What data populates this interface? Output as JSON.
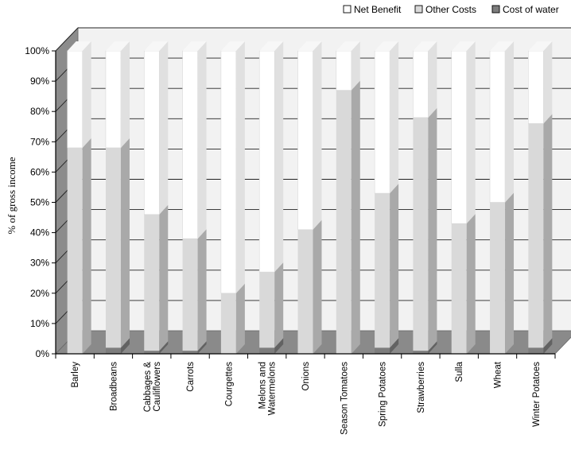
{
  "chart_data": {
    "type": "bar",
    "stacked": true,
    "three_d": true,
    "xlabel": "",
    "ylabel": "% of gross income",
    "ylim": [
      0,
      100
    ],
    "yticks": [
      "0%",
      "10%",
      "20%",
      "30%",
      "40%",
      "50%",
      "60%",
      "70%",
      "80%",
      "90%",
      "100%"
    ],
    "grid": true,
    "legend_position": "top-right",
    "categories": [
      "Barley",
      "Broadbeans",
      "Cabbages & Cauliflowers",
      "Carrots",
      "Courgettes",
      "Melons and Watermelons",
      "Onions",
      "Season Tomatoes",
      "Spring Potatoes",
      "Strawberries",
      "Sulla",
      "Wheat",
      "Winter Potatoes"
    ],
    "series": [
      {
        "name": "Cost of water",
        "color": "#7d7d7d",
        "values": [
          0,
          2,
          1,
          1,
          0,
          2,
          0,
          0,
          2,
          1,
          0,
          0,
          2
        ]
      },
      {
        "name": "Other Costs",
        "color": "#d9d9d9",
        "values": [
          68,
          66,
          45,
          37,
          20,
          25,
          41,
          87,
          51,
          77,
          43,
          50,
          74
        ]
      },
      {
        "name": "Net Benefit",
        "color": "#ffffff",
        "values": [
          32,
          32,
          54,
          62,
          80,
          73,
          59,
          13,
          47,
          22,
          57,
          50,
          24
        ]
      }
    ],
    "legend": [
      "Net Benefit",
      "Other Costs",
      "Cost of water"
    ]
  }
}
